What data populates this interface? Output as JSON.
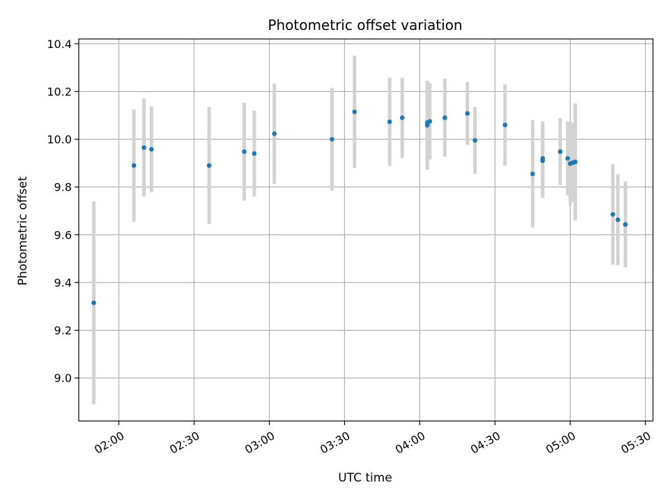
{
  "chart_data": {
    "type": "scatter",
    "title": "Photometric offset variation",
    "xlabel": "UTC time",
    "ylabel": "Photometric offset",
    "x_axis_type": "time",
    "xlim": [
      "01:44",
      "05:33"
    ],
    "ylim": [
      8.82,
      10.42
    ],
    "x_ticks": [
      "02:00",
      "02:30",
      "03:00",
      "03:30",
      "04:00",
      "04:30",
      "05:00",
      "05:30"
    ],
    "y_ticks": [
      9.0,
      9.2,
      9.4,
      9.6,
      9.8,
      10.0,
      10.2,
      10.4
    ],
    "grid": true,
    "point_color": "#1f77b4",
    "errorbar_color": "#d3d3d3",
    "points": [
      {
        "x": "01:50",
        "y": 9.315,
        "err": 0.425
      },
      {
        "x": "02:06",
        "y": 9.89,
        "err": 0.235
      },
      {
        "x": "02:10",
        "y": 9.965,
        "err": 0.205
      },
      {
        "x": "02:13",
        "y": 9.958,
        "err": 0.18
      },
      {
        "x": "02:36",
        "y": 9.89,
        "err": 0.245
      },
      {
        "x": "02:50",
        "y": 9.948,
        "err": 0.205
      },
      {
        "x": "02:54",
        "y": 9.94,
        "err": 0.18
      },
      {
        "x": "03:02",
        "y": 10.023,
        "err": 0.21
      },
      {
        "x": "03:25",
        "y": 10.0,
        "err": 0.215
      },
      {
        "x": "03:34",
        "y": 10.115,
        "err": 0.235
      },
      {
        "x": "03:48",
        "y": 10.073,
        "err": 0.185
      },
      {
        "x": "03:53",
        "y": 10.09,
        "err": 0.168
      },
      {
        "x": "04:03",
        "y": 10.07,
        "err": 0.175
      },
      {
        "x": "04:03",
        "y": 10.058,
        "err": 0.185
      },
      {
        "x": "04:04",
        "y": 10.075,
        "err": 0.16
      },
      {
        "x": "04:10",
        "y": 10.09,
        "err": 0.163
      },
      {
        "x": "04:19",
        "y": 10.108,
        "err": 0.132
      },
      {
        "x": "04:22",
        "y": 9.995,
        "err": 0.14
      },
      {
        "x": "04:34",
        "y": 10.06,
        "err": 0.17
      },
      {
        "x": "04:45",
        "y": 9.855,
        "err": 0.225
      },
      {
        "x": "04:49",
        "y": 9.91,
        "err": 0.155
      },
      {
        "x": "04:49",
        "y": 9.92,
        "err": 0.155
      },
      {
        "x": "04:56",
        "y": 9.948,
        "err": 0.14
      },
      {
        "x": "04:59",
        "y": 9.92,
        "err": 0.155
      },
      {
        "x": "05:00",
        "y": 9.898,
        "err": 0.175
      },
      {
        "x": "05:01",
        "y": 9.902,
        "err": 0.165
      },
      {
        "x": "05:02",
        "y": 9.905,
        "err": 0.245
      },
      {
        "x": "05:17",
        "y": 9.685,
        "err": 0.21
      },
      {
        "x": "05:19",
        "y": 9.663,
        "err": 0.19
      },
      {
        "x": "05:22",
        "y": 9.643,
        "err": 0.18
      }
    ]
  }
}
